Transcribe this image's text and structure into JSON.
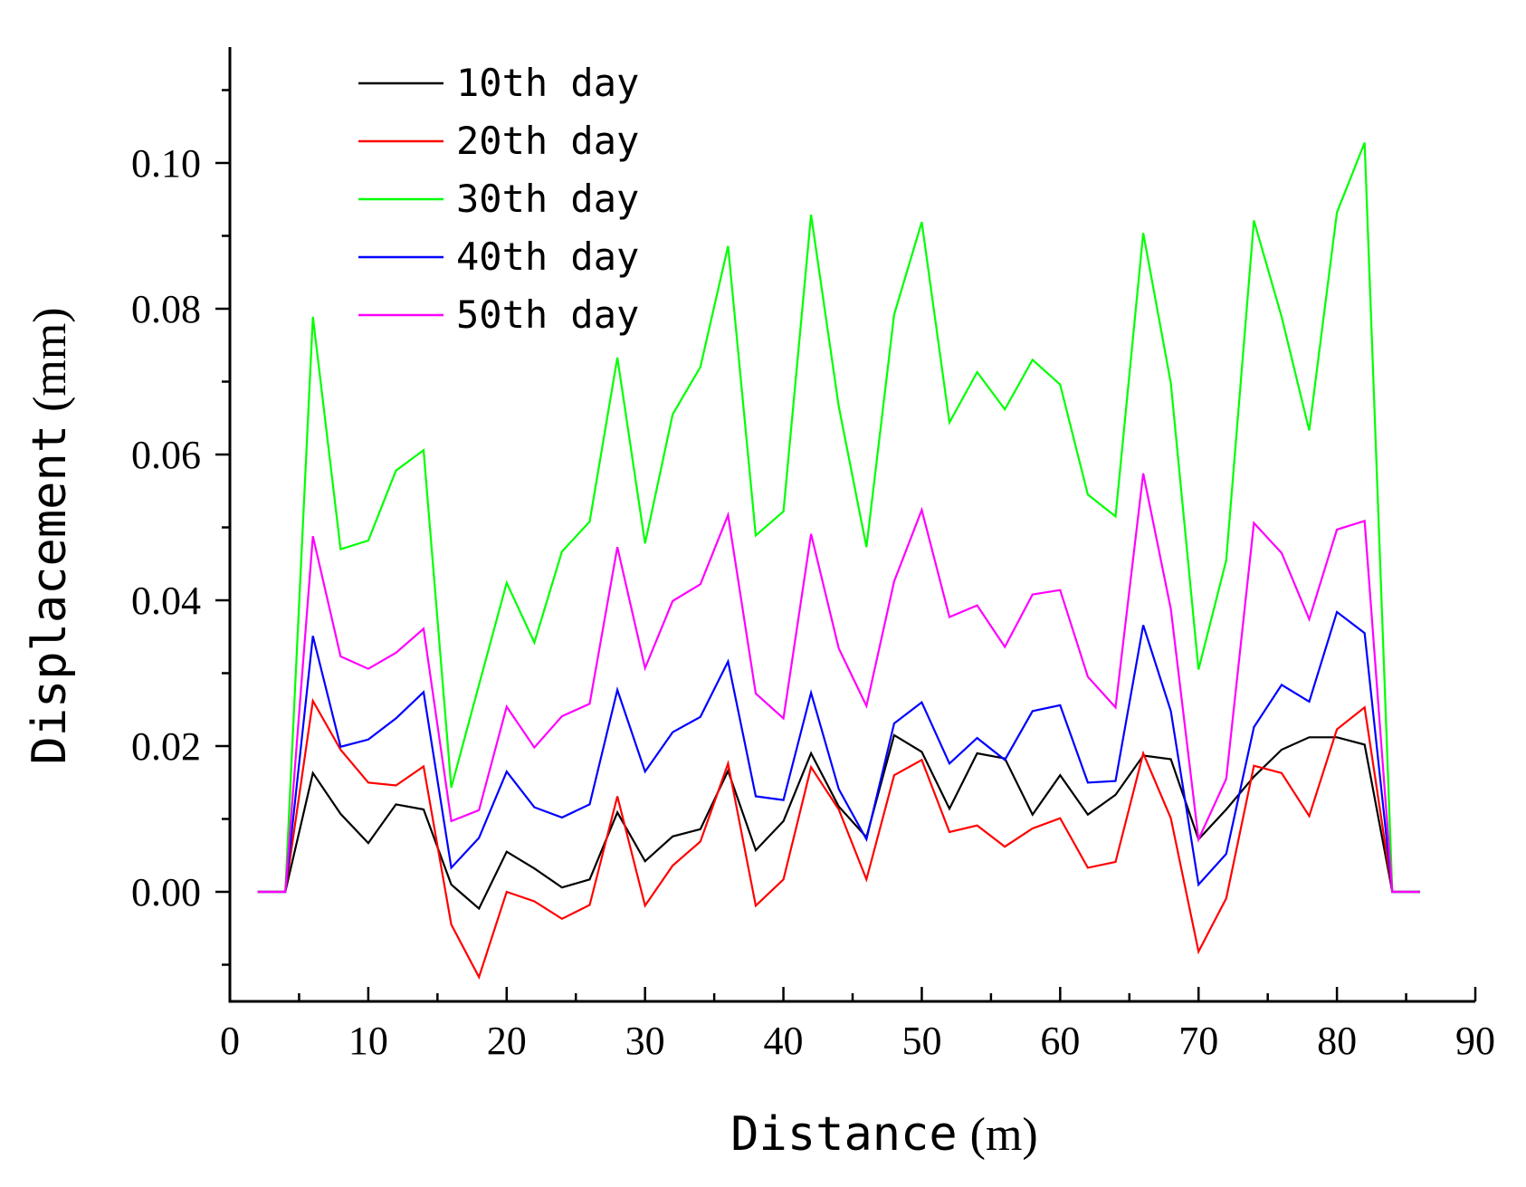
{
  "chart_data": {
    "type": "line",
    "title": "",
    "xlabel": "Distance",
    "xunit": "(m)",
    "ylabel": "Displacement",
    "yunit": "(mm)",
    "xlim": [
      0,
      90
    ],
    "ylim": [
      -0.015,
      0.115
    ],
    "xticks": [
      0,
      10,
      20,
      30,
      40,
      50,
      60,
      70,
      80,
      90
    ],
    "xtick_labels": [
      "0",
      "10",
      "20",
      "30",
      "40",
      "50",
      "60",
      "70",
      "80",
      "90"
    ],
    "yticks": [
      0.0,
      0.02,
      0.04,
      0.06,
      0.08,
      0.1
    ],
    "ytick_labels": [
      "0.00",
      "0.02",
      "0.04",
      "0.06",
      "0.08",
      "0.10"
    ],
    "grid": false,
    "legend_position": "top-left",
    "x": [
      2,
      4,
      6,
      8,
      10,
      12,
      14,
      16,
      18,
      20,
      22,
      24,
      26,
      28,
      30,
      32,
      34,
      36,
      38,
      40,
      42,
      44,
      46,
      48,
      50,
      52,
      54,
      56,
      58,
      60,
      62,
      64,
      66,
      68,
      70,
      72,
      74,
      76,
      78,
      80,
      82,
      84,
      86
    ],
    "series": [
      {
        "name": "10th day",
        "color": "#000000",
        "values": [
          0,
          0,
          0.0163,
          0.0107,
          0.0067,
          0.012,
          0.0113,
          0.001,
          -0.0023,
          0.0055,
          0.0032,
          0.0006,
          0.0017,
          0.0109,
          0.0042,
          0.0076,
          0.0086,
          0.0166,
          0.0057,
          0.0097,
          0.019,
          0.0117,
          0.0075,
          0.0215,
          0.0192,
          0.0114,
          0.019,
          0.0183,
          0.0106,
          0.016,
          0.0106,
          0.0133,
          0.0187,
          0.0182,
          0.0072,
          0.0113,
          0.0158,
          0.0195,
          0.0212,
          0.0212,
          0.0202,
          0,
          0
        ]
      },
      {
        "name": "20th day",
        "color": "#ff0000",
        "values": [
          0,
          0,
          0.0262,
          0.0195,
          0.015,
          0.0146,
          0.0172,
          -0.0045,
          -0.0117,
          0,
          -0.0013,
          -0.0037,
          -0.0018,
          0.0131,
          -0.0019,
          0.0036,
          0.0069,
          0.0176,
          -0.0019,
          0.0017,
          0.0171,
          0.0113,
          0.0017,
          0.016,
          0.0181,
          0.0082,
          0.0091,
          0.0062,
          0.0087,
          0.0101,
          0.0033,
          0.0041,
          0.019,
          0.0101,
          -0.0082,
          -0.0009,
          0.0173,
          0.0163,
          0.0104,
          0.0223,
          0.0253,
          0,
          0
        ]
      },
      {
        "name": "30th day",
        "color": "#00ff00",
        "values": [
          0,
          0,
          0.0789,
          0.047,
          0.0482,
          0.0578,
          0.0606,
          0.0143,
          0.0284,
          0.0424,
          0.0342,
          0.0467,
          0.0508,
          0.0733,
          0.0478,
          0.0655,
          0.072,
          0.0886,
          0.0489,
          0.0522,
          0.0929,
          0.0666,
          0.0473,
          0.0792,
          0.0919,
          0.0644,
          0.0713,
          0.0662,
          0.073,
          0.0696,
          0.0545,
          0.0515,
          0.0904,
          0.0698,
          0.0305,
          0.0455,
          0.0921,
          0.0789,
          0.0633,
          0.0932,
          0.1028,
          0,
          0
        ]
      },
      {
        "name": "40th day",
        "color": "#0000ff",
        "values": [
          0,
          0,
          0.0351,
          0.0199,
          0.0209,
          0.0238,
          0.0274,
          0.0033,
          0.0074,
          0.0165,
          0.0116,
          0.0102,
          0.012,
          0.0277,
          0.0165,
          0.0219,
          0.024,
          0.0316,
          0.0131,
          0.0126,
          0.0273,
          0.0141,
          0.0072,
          0.0231,
          0.026,
          0.0176,
          0.0211,
          0.0181,
          0.0248,
          0.0256,
          0.015,
          0.0152,
          0.0366,
          0.0248,
          0.001,
          0.0052,
          0.0226,
          0.0284,
          0.0261,
          0.0384,
          0.0355,
          0,
          0
        ]
      },
      {
        "name": "50th day",
        "color": "#ff00ff",
        "values": [
          0,
          0,
          0.0488,
          0.0323,
          0.0306,
          0.0328,
          0.0361,
          0.0097,
          0.0112,
          0.0254,
          0.0198,
          0.0241,
          0.0258,
          0.0473,
          0.0307,
          0.0399,
          0.0422,
          0.0517,
          0.0272,
          0.0238,
          0.0491,
          0.0334,
          0.0255,
          0.0426,
          0.0524,
          0.0377,
          0.0393,
          0.0336,
          0.0408,
          0.0414,
          0.0295,
          0.0253,
          0.0574,
          0.0388,
          0.0072,
          0.0155,
          0.0506,
          0.0465,
          0.0374,
          0.0497,
          0.0509,
          0,
          0
        ]
      }
    ]
  }
}
